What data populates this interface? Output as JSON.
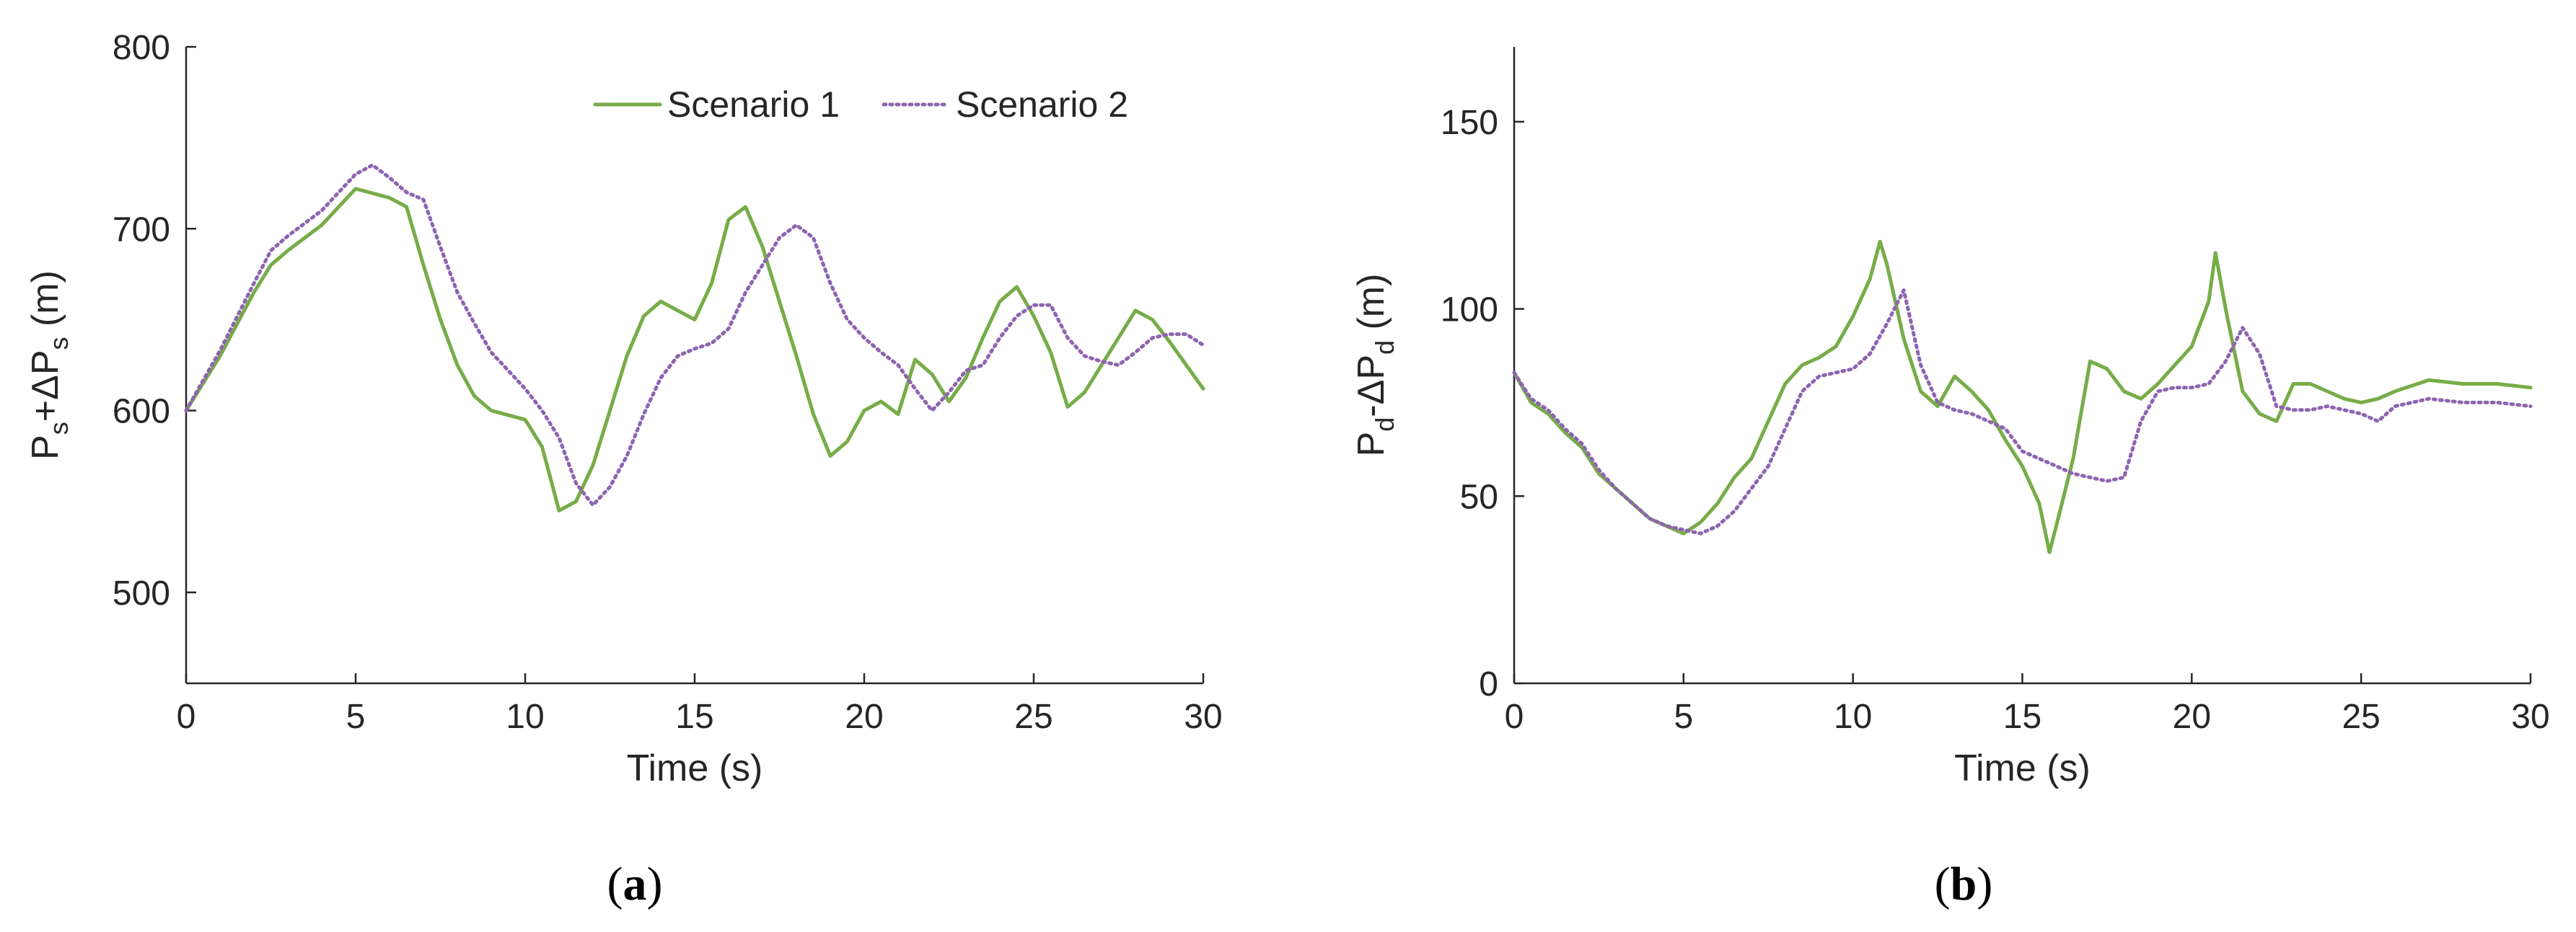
{
  "colors": {
    "scenario1": "#77ac48",
    "scenario2": "#8e64b0",
    "axis": "#262626"
  },
  "legend": {
    "placement": "top-right",
    "entries": [
      "Scenario 1",
      "Scenario 2"
    ]
  },
  "chart_data": [
    {
      "type": "line",
      "panel": "a",
      "caption": {
        "open": "(",
        "letter": "a",
        "close": ")"
      },
      "xlabel": "Time (s)",
      "ylabel": {
        "base1": "P",
        "sub1": "s",
        "mid": "+ΔP",
        "sub2": "s",
        "unit": " (m)"
      },
      "xlim": [
        0,
        30
      ],
      "ylim": [
        450,
        800
      ],
      "xticks": [
        0,
        5,
        10,
        15,
        20,
        25,
        30
      ],
      "yticks": [
        500,
        600,
        700,
        800
      ],
      "grid": false,
      "series": [
        {
          "name": "Scenario 1",
          "style": "solid",
          "x": [
            0,
            1,
            2,
            2.5,
            3,
            4,
            5,
            6,
            6.5,
            7,
            7.5,
            8,
            8.5,
            9,
            10,
            10.5,
            11,
            11.5,
            12,
            12.5,
            13,
            13.5,
            14,
            14.5,
            15,
            15.5,
            16,
            16.5,
            17,
            17.5,
            18,
            18.5,
            19,
            19.5,
            20,
            20.5,
            21,
            21.5,
            22,
            22.5,
            23,
            23.5,
            24,
            24.5,
            25,
            25.5,
            26,
            26.5,
            27,
            27.5,
            28,
            28.5,
            29,
            29.5,
            30
          ],
          "y": [
            600,
            630,
            665,
            680,
            688,
            702,
            722,
            717,
            712,
            680,
            650,
            625,
            608,
            600,
            595,
            580,
            545,
            550,
            570,
            600,
            630,
            652,
            660,
            655,
            650,
            670,
            705,
            712,
            690,
            660,
            630,
            598,
            575,
            583,
            600,
            605,
            598,
            628,
            620,
            605,
            618,
            640,
            660,
            668,
            652,
            632,
            602,
            610,
            625,
            640,
            655,
            650,
            638,
            625,
            612
          ]
        },
        {
          "name": "Scenario 2",
          "style": "dotted",
          "x": [
            0,
            1,
            2,
            2.5,
            3,
            4,
            5,
            5.5,
            6,
            6.5,
            7,
            7.5,
            8,
            8.5,
            9,
            10,
            10.5,
            11,
            11.5,
            12,
            12.5,
            13,
            13.5,
            14,
            14.5,
            15,
            15.5,
            16,
            16.5,
            17,
            17.5,
            18,
            18.5,
            19,
            19.5,
            20,
            20.5,
            21,
            21.5,
            22,
            22.5,
            23,
            23.5,
            24,
            24.5,
            25,
            25.5,
            26,
            26.5,
            27,
            27.5,
            28,
            28.5,
            29,
            29.5,
            30
          ],
          "y": [
            600,
            633,
            670,
            688,
            696,
            710,
            730,
            735,
            728,
            720,
            716,
            690,
            665,
            648,
            632,
            612,
            600,
            585,
            560,
            548,
            558,
            575,
            598,
            618,
            630,
            634,
            637,
            645,
            665,
            680,
            695,
            702,
            695,
            670,
            650,
            640,
            632,
            625,
            612,
            600,
            610,
            622,
            625,
            640,
            652,
            658,
            658,
            640,
            630,
            627,
            625,
            632,
            640,
            642,
            642,
            636
          ]
        }
      ]
    },
    {
      "type": "line",
      "panel": "b",
      "caption": {
        "open": "(",
        "letter": "b",
        "close": ")"
      },
      "xlabel": "Time (s)",
      "ylabel": {
        "base1": "P",
        "sub1": "d",
        "mid": "-ΔP",
        "sub2": "d",
        "unit": " (m)"
      },
      "xlim": [
        0,
        30
      ],
      "ylim": [
        0,
        170
      ],
      "xticks": [
        0,
        5,
        10,
        15,
        20,
        25,
        30
      ],
      "yticks": [
        0,
        50,
        100,
        150
      ],
      "grid": false,
      "series": [
        {
          "name": "Scenario 1",
          "style": "solid",
          "x": [
            0,
            0.5,
            1,
            1.5,
            2,
            2.5,
            3,
            3.5,
            4,
            4.5,
            5,
            5.5,
            6,
            6.5,
            7,
            7.5,
            8,
            8.5,
            9,
            9.5,
            10,
            10.5,
            10.8,
            11,
            11.5,
            12,
            12.5,
            13,
            13.5,
            14,
            14.5,
            15,
            15.5,
            15.8,
            16,
            16.5,
            17,
            17.5,
            18,
            18.5,
            19,
            19.5,
            20,
            20.5,
            20.7,
            21,
            21.5,
            22,
            22.5,
            23,
            23.5,
            24,
            24.5,
            25,
            25.5,
            26,
            27,
            28,
            29,
            30
          ],
          "y": [
            83,
            75,
            72,
            67,
            63,
            56,
            52,
            48,
            44,
            42,
            40,
            43,
            48,
            55,
            60,
            70,
            80,
            85,
            87,
            90,
            98,
            108,
            118,
            112,
            92,
            78,
            74,
            82,
            78,
            73,
            65,
            58,
            48,
            35,
            42,
            60,
            86,
            84,
            78,
            76,
            80,
            85,
            90,
            102,
            115,
            100,
            78,
            72,
            70,
            80,
            80,
            78,
            76,
            75,
            76,
            78,
            81,
            80,
            80,
            79
          ]
        },
        {
          "name": "Scenario 2",
          "style": "dotted",
          "x": [
            0,
            0.5,
            1,
            1.5,
            2,
            2.5,
            3,
            3.5,
            4,
            4.5,
            5,
            5.5,
            6,
            6.5,
            7,
            7.5,
            8,
            8.5,
            9,
            9.5,
            10,
            10.5,
            11,
            11.5,
            12,
            12.5,
            13,
            13.5,
            14,
            14.5,
            15,
            15.5,
            16,
            16.5,
            17,
            17.5,
            18,
            18.5,
            19,
            19.5,
            20,
            20.5,
            21,
            21.5,
            22,
            22.5,
            23,
            23.5,
            24,
            24.5,
            25,
            25.5,
            26,
            27,
            28,
            29,
            30
          ],
          "y": [
            83,
            76,
            73,
            68,
            64,
            57,
            52,
            48,
            44,
            42,
            41,
            40,
            42,
            46,
            52,
            58,
            68,
            78,
            82,
            83,
            84,
            88,
            96,
            105,
            85,
            75,
            73,
            72,
            70,
            68,
            62,
            60,
            58,
            56,
            55,
            54,
            55,
            70,
            78,
            79,
            79,
            80,
            86,
            95,
            88,
            74,
            73,
            73,
            74,
            73,
            72,
            70,
            74,
            76,
            75,
            75,
            74
          ]
        }
      ]
    }
  ]
}
